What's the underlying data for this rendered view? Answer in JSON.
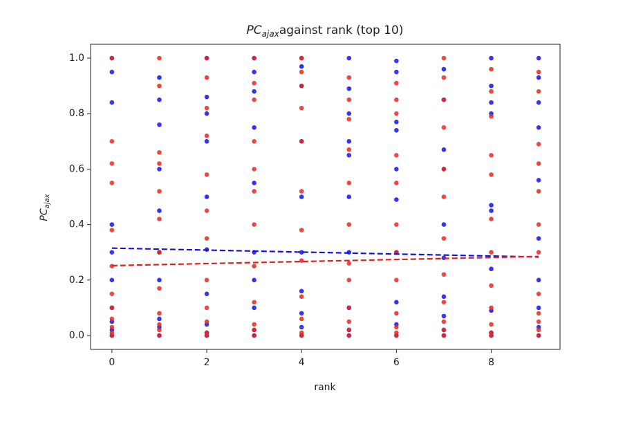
{
  "chart_data": {
    "type": "scatter",
    "title": {
      "main": "PC",
      "sub": "ajax",
      "rest": "against rank (top 10)"
    },
    "x_label": "rank",
    "y_label": {
      "main": "PC",
      "sub": "ajax"
    },
    "xlim": [
      -0.45,
      9.45
    ],
    "ylim": [
      -0.05,
      1.05
    ],
    "xticks": [
      0,
      2,
      4,
      6,
      8
    ],
    "yticks": [
      {
        "value": 0,
        "label": "0.0"
      },
      {
        "value": 0.2,
        "label": "0.2"
      },
      {
        "value": 0.4,
        "label": "0.4"
      },
      {
        "value": 0.6,
        "label": "0.6"
      },
      {
        "value": 0.8,
        "label": "0.8"
      },
      {
        "value": 1,
        "label": "1.0"
      }
    ],
    "series": [
      {
        "color": "#1010f0",
        "x": [
          0,
          0,
          0,
          0,
          0,
          0,
          0,
          0,
          0,
          0,
          1,
          1,
          1,
          1,
          1,
          1,
          1,
          1,
          1,
          1,
          2,
          2,
          2,
          2,
          2,
          2,
          2,
          2,
          2,
          2,
          3,
          3,
          3,
          3,
          3,
          3,
          3,
          3,
          3,
          3,
          4,
          4,
          4,
          4,
          4,
          4,
          4,
          4,
          4,
          4,
          5,
          5,
          5,
          5,
          5,
          5,
          5,
          5,
          5,
          5,
          6,
          6,
          6,
          6,
          6,
          6,
          6,
          6,
          6,
          6,
          7,
          7,
          7,
          7,
          7,
          7,
          7,
          7,
          7,
          7,
          8,
          8,
          8,
          8,
          8,
          8,
          8,
          8,
          8,
          8,
          9,
          9,
          9,
          9,
          9,
          9,
          9,
          9,
          9,
          9
        ],
        "values": [
          0,
          0.02,
          0.05,
          0.1,
          0.2,
          0.3,
          0.4,
          0.84,
          0.95,
          1.0,
          0,
          0.03,
          0.06,
          0.2,
          0.3,
          0.45,
          0.6,
          0.76,
          0.85,
          0.93,
          0,
          0.01,
          0.04,
          0.15,
          0.31,
          0.5,
          0.7,
          0.8,
          0.86,
          1.0,
          0,
          0.02,
          0.1,
          0.2,
          0.3,
          0.55,
          0.75,
          0.88,
          0.95,
          1.0,
          0,
          0.03,
          0.08,
          0.16,
          0.3,
          0.5,
          0.7,
          0.9,
          0.97,
          1.0,
          0,
          0.02,
          0.1,
          0.3,
          0.5,
          0.65,
          0.7,
          0.8,
          0.89,
          1.0,
          0,
          0.04,
          0.12,
          0.3,
          0.49,
          0.6,
          0.74,
          0.77,
          0.95,
          0.99,
          0,
          0.02,
          0.07,
          0.14,
          0.28,
          0.4,
          0.6,
          0.67,
          0.85,
          0.96,
          0,
          0.01,
          0.09,
          0.24,
          0.45,
          0.47,
          0.8,
          0.84,
          0.9,
          1.0,
          0,
          0.03,
          0.1,
          0.2,
          0.35,
          0.56,
          0.75,
          0.84,
          0.93,
          1.0
        ]
      },
      {
        "color": "#e8281e",
        "x": [
          0,
          0,
          0,
          0,
          0,
          0,
          0,
          0,
          0,
          0,
          0,
          0,
          1,
          1,
          1,
          1,
          1,
          1,
          1,
          1,
          1,
          1,
          1,
          1,
          2,
          2,
          2,
          2,
          2,
          2,
          2,
          2,
          2,
          2,
          2,
          2,
          3,
          3,
          3,
          3,
          3,
          3,
          3,
          3,
          3,
          3,
          3,
          3,
          4,
          4,
          4,
          4,
          4,
          4,
          4,
          4,
          4,
          4,
          4,
          4,
          5,
          5,
          5,
          5,
          5,
          5,
          5,
          5,
          5,
          5,
          5,
          5,
          6,
          6,
          6,
          6,
          6,
          6,
          6,
          6,
          6,
          6,
          6,
          6,
          7,
          7,
          7,
          7,
          7,
          7,
          7,
          7,
          7,
          7,
          7,
          7,
          8,
          8,
          8,
          8,
          8,
          8,
          8,
          8,
          8,
          8,
          8,
          8,
          9,
          9,
          9,
          9,
          9,
          9,
          9,
          9,
          9,
          9,
          9,
          9
        ],
        "values": [
          0,
          0.01,
          0.03,
          0.06,
          0.1,
          0.15,
          0.25,
          0.38,
          0.55,
          0.62,
          0.7,
          1.0,
          0,
          0.02,
          0.04,
          0.08,
          0.17,
          0.3,
          0.42,
          0.52,
          0.62,
          0.66,
          0.9,
          1.0,
          0,
          0.01,
          0.05,
          0.1,
          0.2,
          0.35,
          0.45,
          0.58,
          0.72,
          0.82,
          0.93,
          1.0,
          0,
          0.02,
          0.04,
          0.12,
          0.25,
          0.4,
          0.52,
          0.6,
          0.7,
          0.85,
          0.91,
          1.0,
          0,
          0.01,
          0.06,
          0.14,
          0.27,
          0.38,
          0.52,
          0.7,
          0.82,
          0.9,
          0.95,
          1.0,
          0,
          0.02,
          0.05,
          0.1,
          0.2,
          0.26,
          0.4,
          0.55,
          0.67,
          0.78,
          0.93,
          0.85,
          0,
          0.01,
          0.03,
          0.08,
          0.2,
          0.3,
          0.4,
          0.55,
          0.65,
          0.8,
          0.85,
          0.91,
          0,
          0.02,
          0.05,
          0.12,
          0.22,
          0.35,
          0.5,
          0.6,
          0.75,
          0.85,
          0.93,
          1.0,
          0,
          0.01,
          0.04,
          0.1,
          0.18,
          0.3,
          0.42,
          0.58,
          0.65,
          0.79,
          0.88,
          0.96,
          0,
          0.02,
          0.05,
          0.08,
          0.15,
          0.3,
          0.4,
          0.52,
          0.62,
          0.69,
          0.88,
          0.95
        ]
      }
    ],
    "trend_lines": [
      {
        "color": "#1010e0",
        "x": [
          0,
          9
        ],
        "values": [
          0.315,
          0.283
        ]
      },
      {
        "color": "#e02020",
        "x": [
          0,
          9
        ],
        "values": [
          0.252,
          0.285
        ]
      }
    ]
  }
}
